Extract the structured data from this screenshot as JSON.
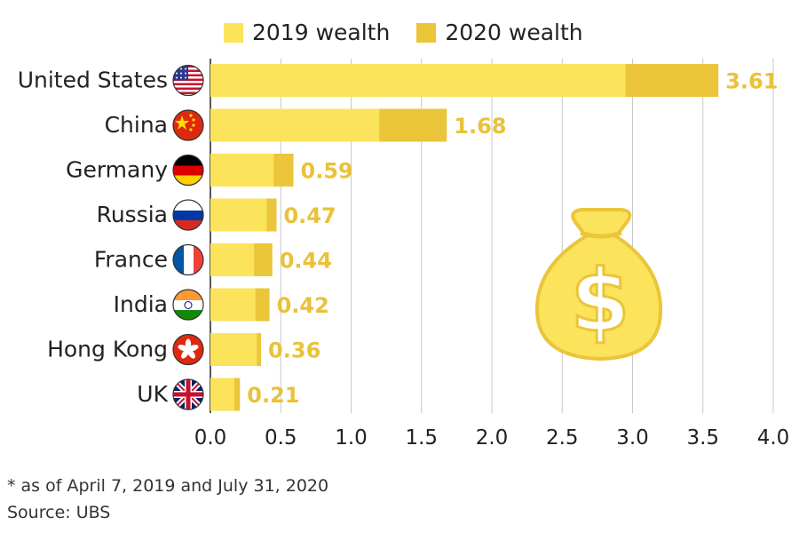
{
  "chart_data": {
    "type": "bar",
    "orientation": "horizontal",
    "stacked_overlay": true,
    "categories": [
      "United States",
      "China",
      "Germany",
      "Russia",
      "France",
      "India",
      "Hong Kong",
      "UK"
    ],
    "series": [
      {
        "name": "2019 wealth",
        "values": [
          2.95,
          1.2,
          0.45,
          0.4,
          0.31,
          0.32,
          0.33,
          0.17
        ],
        "color": "#fbe35c"
      },
      {
        "name": "2020 wealth",
        "values": [
          3.61,
          1.68,
          0.59,
          0.47,
          0.44,
          0.42,
          0.36,
          0.21
        ],
        "color": "#ebc53a"
      }
    ],
    "data_labels": [
      "3.61",
      "1.68",
      "0.59",
      "0.47",
      "0.44",
      "0.42",
      "0.36",
      "0.21"
    ],
    "xlim": [
      0,
      4.0
    ],
    "xticks": [
      "0.0",
      "0.5",
      "1.0",
      "1.5",
      "2.0",
      "2.5",
      "3.0",
      "3.5",
      "4.0"
    ],
    "grid": true,
    "legend_position": "top",
    "label_color": "#e9c23a",
    "flags": [
      "us-flag-icon",
      "china-flag-icon",
      "germany-flag-icon",
      "russia-flag-icon",
      "france-flag-icon",
      "india-flag-icon",
      "hong-kong-flag-icon",
      "uk-flag-icon"
    ],
    "decoration": "money-bag-icon"
  },
  "footnote": "* as of April 7, 2019 and July 31, 2020",
  "source": "Source: UBS"
}
